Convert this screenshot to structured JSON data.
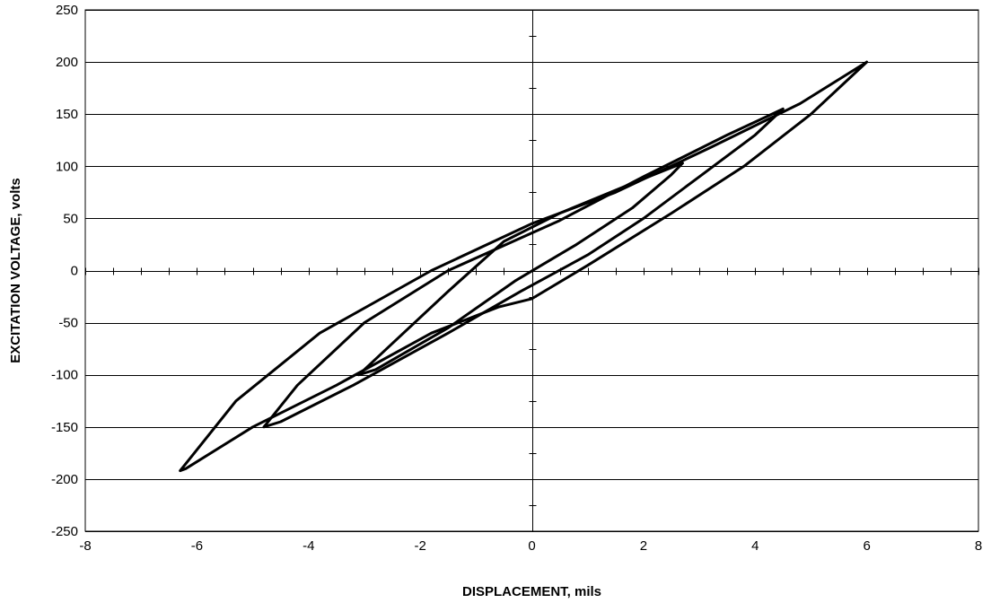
{
  "chart_data": {
    "type": "line",
    "title": "",
    "xlabel": "DISPLACEMENT, mils",
    "ylabel": "EXCITATION VOLTAGE, volts",
    "xlim": [
      -8,
      8
    ],
    "ylim": [
      -250,
      250
    ],
    "x_ticks": [
      "-8",
      "-6",
      "-4",
      "-2",
      "0",
      "2",
      "4",
      "6",
      "8"
    ],
    "y_ticks": [
      "250",
      "200",
      "150",
      "100",
      "50",
      "0",
      "-50",
      "-100",
      "-150",
      "-200",
      "-250"
    ],
    "grid": "horizontal",
    "legend": "none",
    "line_color": "#000000",
    "series": [
      {
        "loop": "outer",
        "x": [
          6.0,
          4.8,
          3.2,
          1.5,
          0.0,
          -1.8,
          -3.8,
          -5.3,
          -6.3,
          -6.2,
          -5.0,
          -3.5,
          -1.8,
          -0.6,
          0.0,
          1.0,
          2.5,
          3.8,
          5.0,
          5.7,
          6.0
        ],
        "y": [
          200,
          160,
          118,
          75,
          45,
          0,
          -60,
          -125,
          -192,
          -190,
          -150,
          -110,
          -60,
          -35,
          -27,
          5,
          55,
          100,
          150,
          185,
          200
        ]
      },
      {
        "loop": "middle",
        "x": [
          4.5,
          3.5,
          2.0,
          0.5,
          -1.5,
          -3.0,
          -4.2,
          -4.8,
          -4.5,
          -3.2,
          -1.5,
          -0.2,
          1.0,
          2.0,
          3.0,
          4.0,
          4.5
        ],
        "y": [
          155,
          130,
          90,
          48,
          0,
          -50,
          -110,
          -150,
          -145,
          -110,
          -60,
          -20,
          15,
          50,
          90,
          130,
          155
        ]
      },
      {
        "loop": "inner",
        "x": [
          2.7,
          2.0,
          0.5,
          -0.5,
          -1.5,
          -2.5,
          -3.1,
          -2.8,
          -1.5,
          -0.3,
          0.8,
          1.8,
          2.5,
          2.7
        ],
        "y": [
          103,
          88,
          55,
          28,
          -20,
          -70,
          -100,
          -95,
          -55,
          -10,
          25,
          60,
          92,
          103
        ]
      }
    ]
  }
}
